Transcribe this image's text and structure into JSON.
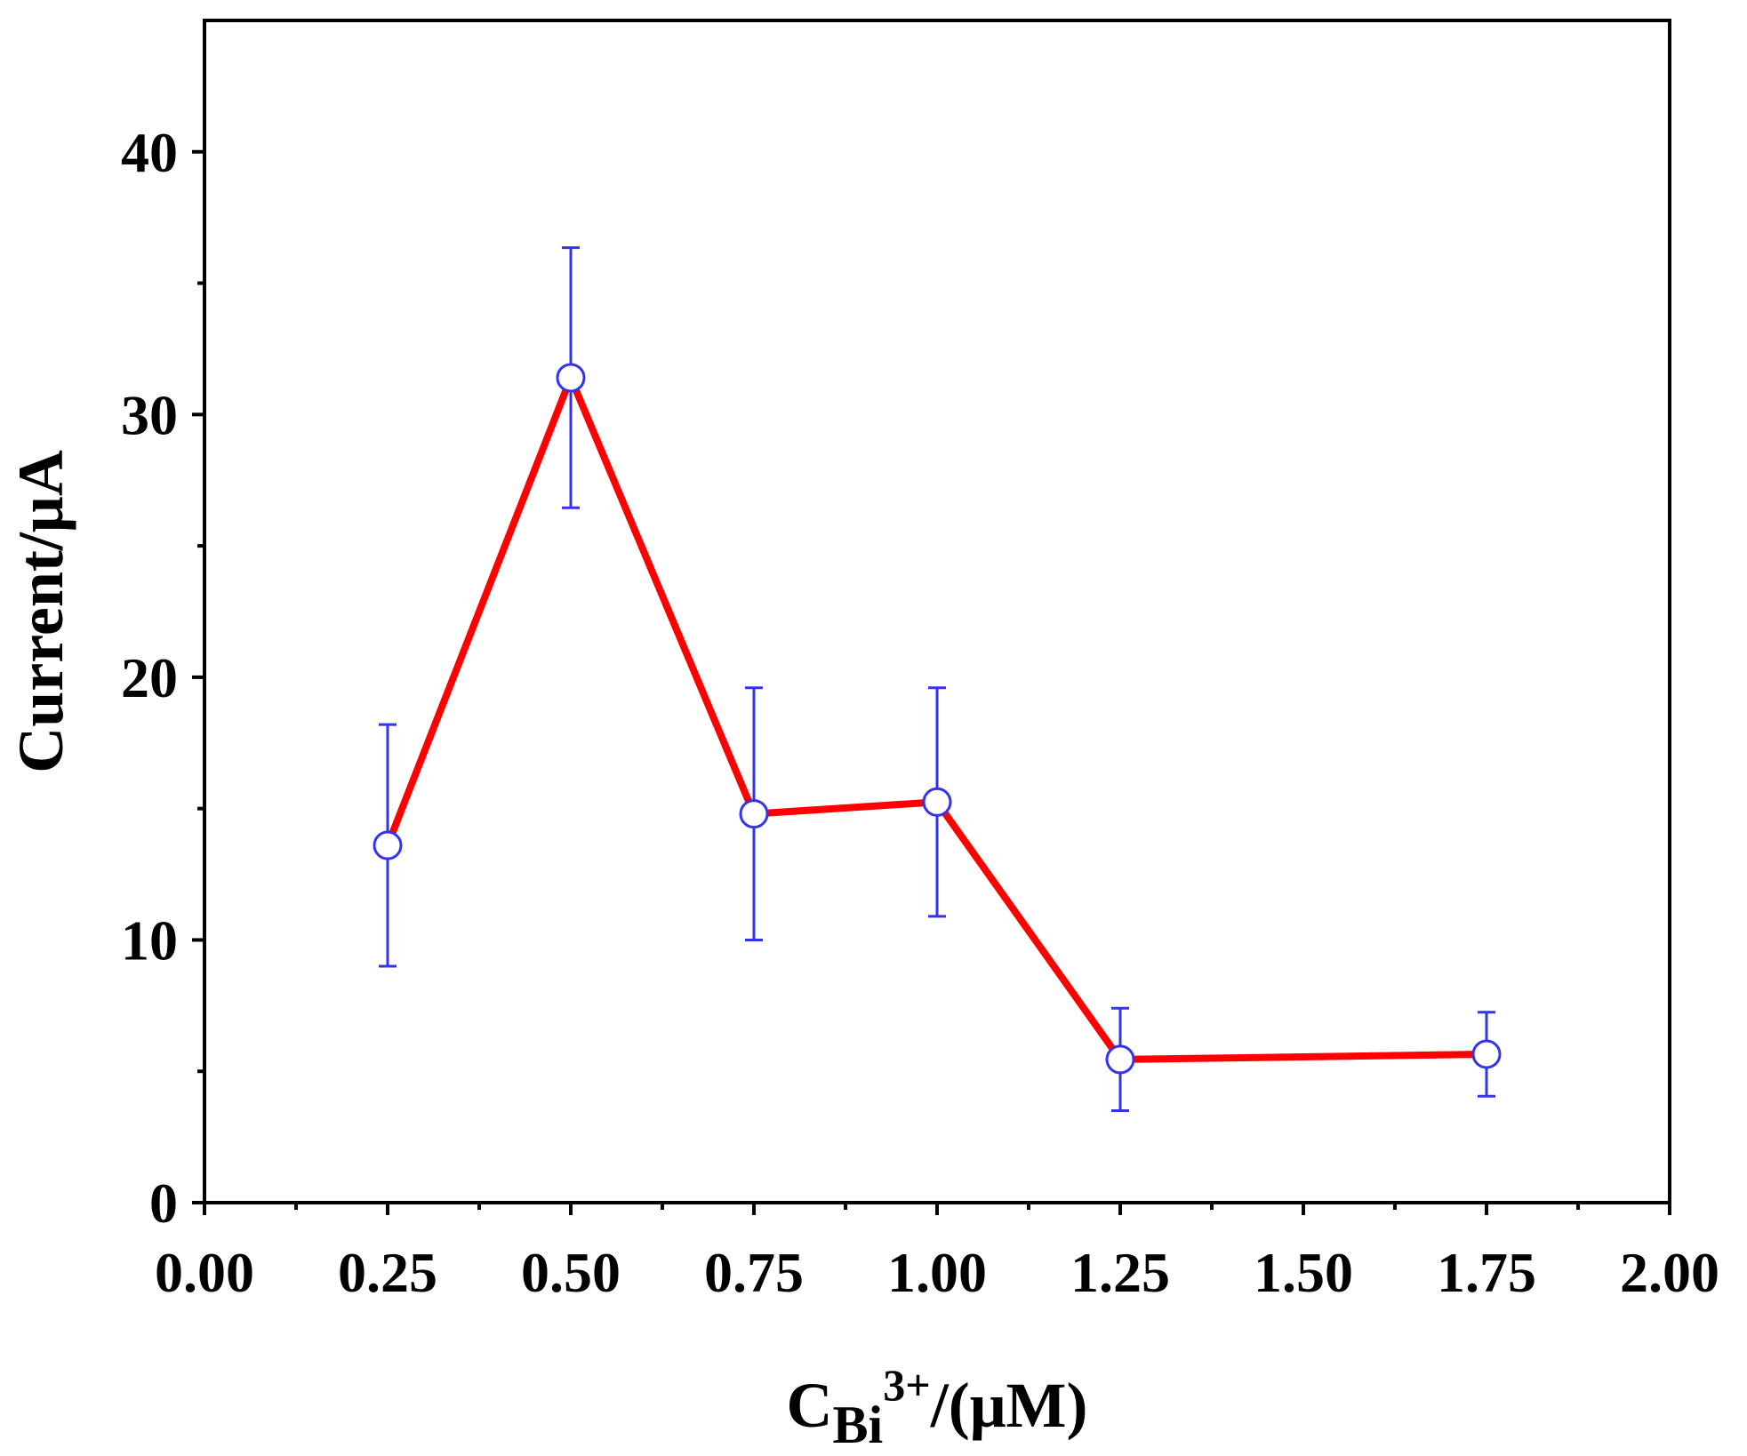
{
  "chart_data": {
    "type": "line",
    "title": "",
    "xlabel": {
      "main": "C",
      "sub": "Bi",
      "sup": "3+",
      "tail": "/(μM)"
    },
    "ylabel": "Current/μA",
    "xlim": [
      0,
      2
    ],
    "ylim": [
      0,
      45
    ],
    "x_ticks": [
      {
        "value": 0.0,
        "label": "0.00"
      },
      {
        "value": 0.25,
        "label": "0.25"
      },
      {
        "value": 0.5,
        "label": "0.50"
      },
      {
        "value": 0.75,
        "label": "0.75"
      },
      {
        "value": 1.0,
        "label": "1.00"
      },
      {
        "value": 1.25,
        "label": "1.25"
      },
      {
        "value": 1.5,
        "label": "1.50"
      },
      {
        "value": 1.75,
        "label": "1.75"
      },
      {
        "value": 2.0,
        "label": "2.00"
      }
    ],
    "y_ticks": [
      {
        "value": 0,
        "label": "0"
      },
      {
        "value": 10,
        "label": "10"
      },
      {
        "value": 20,
        "label": "20"
      },
      {
        "value": 30,
        "label": "30"
      },
      {
        "value": 40,
        "label": "40"
      }
    ],
    "grid": false,
    "series": [
      {
        "name": "Current",
        "line_color": "#ff0000",
        "marker_color": "#3333ee",
        "points": [
          {
            "x": 0.25,
            "y": 13.6,
            "err": 4.6
          },
          {
            "x": 0.5,
            "y": 31.4,
            "err": 4.95
          },
          {
            "x": 0.75,
            "y": 14.8,
            "err": 4.8
          },
          {
            "x": 1.0,
            "y": 15.25,
            "err": 4.35
          },
          {
            "x": 1.25,
            "y": 5.45,
            "err": 1.95
          },
          {
            "x": 1.75,
            "y": 5.65,
            "err": 1.6
          }
        ]
      }
    ]
  }
}
